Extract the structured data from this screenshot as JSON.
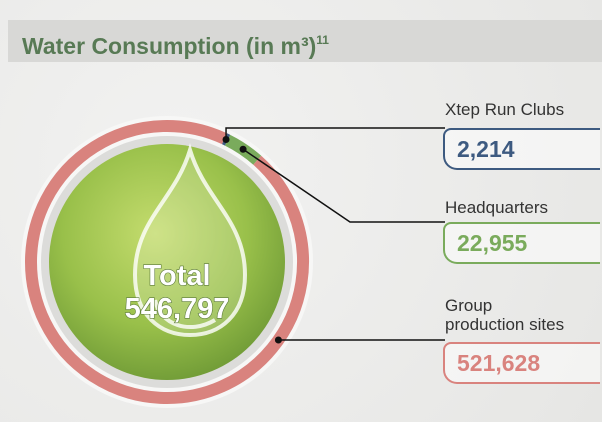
{
  "chart_data": {
    "type": "donut",
    "title": "Water Consumption (in m³)",
    "title_note": "11",
    "center_label": "Total",
    "total": 546797,
    "total_label": "546,797",
    "categories": [
      "Xtep Run Clubs",
      "Headquarters",
      "Group production sites"
    ],
    "values": [
      2214,
      22955,
      521628
    ],
    "value_labels": [
      "2,214",
      "22,955",
      "521,628"
    ],
    "colors": [
      "#3d5a80",
      "#7aab5c",
      "#d9837e"
    ]
  }
}
